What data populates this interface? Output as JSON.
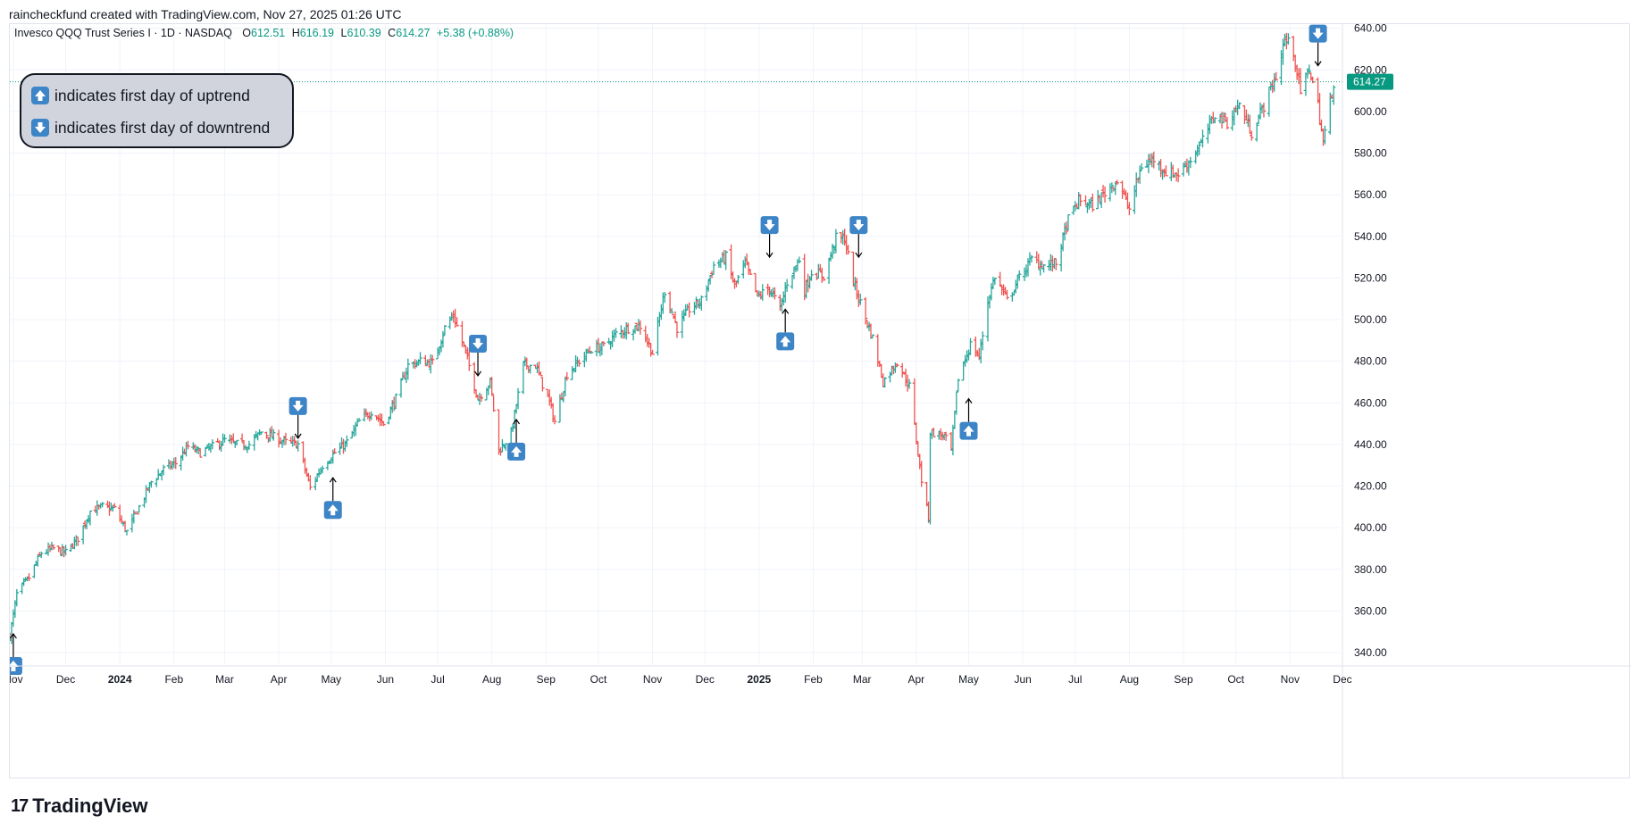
{
  "header": {
    "created_by": "raincheckfund created with TradingView.com, Nov 27, 2025 01:26 UTC"
  },
  "footer": {
    "brand_name": "TradingView",
    "logo_glyph": "17"
  },
  "colors": {
    "up": "#26a69a",
    "down": "#ef5350",
    "grid": "#f0f3fa",
    "axis_text": "#131722",
    "price_tag_bg": "#089981",
    "marker_bg": "#3d85c6"
  },
  "legend_box": {
    "line1": "indicates first day of uptrend",
    "line2": "indicates first day of downtrend"
  },
  "chart_data": {
    "type": "ohlc",
    "symbol_title": "Invesco QQQ Trust Series I · 1D · NASDAQ",
    "ohlc_labels": {
      "o": "O",
      "h": "H",
      "l": "L",
      "c": "C"
    },
    "last_ohlc": {
      "o": "612.51",
      "h": "616.19",
      "l": "610.39",
      "c": "614.27",
      "change": "+5.38 (+0.88%)"
    },
    "last_price_label": "614.27",
    "last_price": 614.27,
    "y_range": [
      334,
      642
    ],
    "y_ticks": [
      340,
      360,
      380,
      400,
      420,
      440,
      460,
      480,
      500,
      520,
      540,
      560,
      580,
      600,
      620,
      640
    ],
    "y_tick_labels": [
      "340.00",
      "360.00",
      "380.00",
      "400.00",
      "420.00",
      "440.00",
      "460.00",
      "480.00",
      "500.00",
      "520.00",
      "540.00",
      "560.00",
      "580.00",
      "600.00",
      "620.00",
      "640.00"
    ],
    "x_range": [
      "2023-10-30",
      "2025-11-30"
    ],
    "x_ticks": [
      {
        "date": "2023-11-01",
        "label": "Nov",
        "bold": false
      },
      {
        "date": "2023-12-01",
        "label": "Dec",
        "bold": false
      },
      {
        "date": "2024-01-01",
        "label": "2024",
        "bold": true
      },
      {
        "date": "2024-02-01",
        "label": "Feb",
        "bold": false
      },
      {
        "date": "2024-03-01",
        "label": "Mar",
        "bold": false
      },
      {
        "date": "2024-04-01",
        "label": "Apr",
        "bold": false
      },
      {
        "date": "2024-05-01",
        "label": "May",
        "bold": false
      },
      {
        "date": "2024-06-01",
        "label": "Jun",
        "bold": false
      },
      {
        "date": "2024-07-01",
        "label": "Jul",
        "bold": false
      },
      {
        "date": "2024-08-01",
        "label": "Aug",
        "bold": false
      },
      {
        "date": "2024-09-01",
        "label": "Sep",
        "bold": false
      },
      {
        "date": "2024-10-01",
        "label": "Oct",
        "bold": false
      },
      {
        "date": "2024-11-01",
        "label": "Nov",
        "bold": false
      },
      {
        "date": "2024-12-01",
        "label": "Dec",
        "bold": false
      },
      {
        "date": "2025-01-01",
        "label": "2025",
        "bold": true
      },
      {
        "date": "2025-02-01",
        "label": "Feb",
        "bold": false
      },
      {
        "date": "2025-03-01",
        "label": "Mar",
        "bold": false
      },
      {
        "date": "2025-04-01",
        "label": "Apr",
        "bold": false
      },
      {
        "date": "2025-05-01",
        "label": "May",
        "bold": false
      },
      {
        "date": "2025-06-01",
        "label": "Jun",
        "bold": false
      },
      {
        "date": "2025-07-01",
        "label": "Jul",
        "bold": false
      },
      {
        "date": "2025-08-01",
        "label": "Aug",
        "bold": false
      },
      {
        "date": "2025-09-01",
        "label": "Sep",
        "bold": false
      },
      {
        "date": "2025-10-01",
        "label": "Oct",
        "bold": false
      },
      {
        "date": "2025-11-01",
        "label": "Nov",
        "bold": false
      },
      {
        "date": "2025-12-01",
        "label": "Dec",
        "bold": false
      }
    ],
    "approx_closes": [
      [
        "2023-10-30",
        348
      ],
      [
        "2023-11-03",
        368
      ],
      [
        "2023-11-10",
        376
      ],
      [
        "2023-11-17",
        388
      ],
      [
        "2023-11-24",
        390
      ],
      [
        "2023-12-01",
        388
      ],
      [
        "2023-12-08",
        395
      ],
      [
        "2023-12-15",
        408
      ],
      [
        "2023-12-22",
        410
      ],
      [
        "2023-12-29",
        409
      ],
      [
        "2024-01-05",
        398
      ],
      [
        "2024-01-12",
        410
      ],
      [
        "2024-01-19",
        422
      ],
      [
        "2024-01-26",
        428
      ],
      [
        "2024-02-02",
        431
      ],
      [
        "2024-02-09",
        439
      ],
      [
        "2024-02-16",
        436
      ],
      [
        "2024-02-23",
        439
      ],
      [
        "2024-03-01",
        442
      ],
      [
        "2024-03-08",
        440
      ],
      [
        "2024-03-15",
        440
      ],
      [
        "2024-03-22",
        446
      ],
      [
        "2024-03-28",
        444
      ],
      [
        "2024-04-05",
        441
      ],
      [
        "2024-04-12",
        440
      ],
      [
        "2024-04-19",
        419
      ],
      [
        "2024-04-26",
        430
      ],
      [
        "2024-05-03",
        436
      ],
      [
        "2024-05-10",
        441
      ],
      [
        "2024-05-17",
        451
      ],
      [
        "2024-05-24",
        456
      ],
      [
        "2024-05-31",
        450
      ],
      [
        "2024-06-07",
        462
      ],
      [
        "2024-06-14",
        478
      ],
      [
        "2024-06-21",
        480
      ],
      [
        "2024-06-28",
        479
      ],
      [
        "2024-07-05",
        496
      ],
      [
        "2024-07-10",
        502
      ],
      [
        "2024-07-17",
        484
      ],
      [
        "2024-07-24",
        462
      ],
      [
        "2024-07-31",
        470
      ],
      [
        "2024-08-05",
        437
      ],
      [
        "2024-08-12",
        445
      ],
      [
        "2024-08-19",
        478
      ],
      [
        "2024-08-26",
        478
      ],
      [
        "2024-09-03",
        460
      ],
      [
        "2024-09-06",
        451
      ],
      [
        "2024-09-13",
        474
      ],
      [
        "2024-09-20",
        480
      ],
      [
        "2024-09-27",
        486
      ],
      [
        "2024-10-04",
        487
      ],
      [
        "2024-10-11",
        493
      ],
      [
        "2024-10-18",
        496
      ],
      [
        "2024-10-25",
        497
      ],
      [
        "2024-11-01",
        484
      ],
      [
        "2024-11-08",
        514
      ],
      [
        "2024-11-15",
        496
      ],
      [
        "2024-11-22",
        505
      ],
      [
        "2024-11-29",
        509
      ],
      [
        "2024-12-06",
        526
      ],
      [
        "2024-12-13",
        530
      ],
      [
        "2024-12-18",
        516
      ],
      [
        "2024-12-24",
        527
      ],
      [
        "2024-12-31",
        511
      ],
      [
        "2025-01-07",
        515
      ],
      [
        "2025-01-13",
        505
      ],
      [
        "2025-01-17",
        518
      ],
      [
        "2025-01-24",
        529
      ],
      [
        "2025-01-27",
        514
      ],
      [
        "2025-01-31",
        523
      ],
      [
        "2025-02-07",
        521
      ],
      [
        "2025-02-14",
        539
      ],
      [
        "2025-02-19",
        539
      ],
      [
        "2025-02-24",
        518
      ],
      [
        "2025-02-28",
        508
      ],
      [
        "2025-03-07",
        491
      ],
      [
        "2025-03-13",
        470
      ],
      [
        "2025-03-21",
        480
      ],
      [
        "2025-03-28",
        468
      ],
      [
        "2025-04-04",
        423
      ],
      [
        "2025-04-08",
        405
      ],
      [
        "2025-04-09",
        446
      ],
      [
        "2025-04-17",
        444
      ],
      [
        "2025-04-21",
        437
      ],
      [
        "2025-04-25",
        472
      ],
      [
        "2025-05-02",
        488
      ],
      [
        "2025-05-07",
        482
      ],
      [
        "2025-05-12",
        509
      ],
      [
        "2025-05-16",
        521
      ],
      [
        "2025-05-23",
        509
      ],
      [
        "2025-05-30",
        520
      ],
      [
        "2025-06-06",
        529
      ],
      [
        "2025-06-13",
        526
      ],
      [
        "2025-06-20",
        527
      ],
      [
        "2025-06-27",
        548
      ],
      [
        "2025-07-03",
        557
      ],
      [
        "2025-07-11",
        555
      ],
      [
        "2025-07-18",
        561
      ],
      [
        "2025-07-25",
        567
      ],
      [
        "2025-08-01",
        553
      ],
      [
        "2025-08-08",
        574
      ],
      [
        "2025-08-15",
        577
      ],
      [
        "2025-08-22",
        571
      ],
      [
        "2025-08-29",
        570
      ],
      [
        "2025-09-05",
        577
      ],
      [
        "2025-09-12",
        586
      ],
      [
        "2025-09-19",
        599
      ],
      [
        "2025-09-26",
        595
      ],
      [
        "2025-10-03",
        603
      ],
      [
        "2025-10-10",
        590
      ],
      [
        "2025-10-17",
        603
      ],
      [
        "2025-10-24",
        617
      ],
      [
        "2025-10-29",
        635
      ],
      [
        "2025-11-03",
        629
      ],
      [
        "2025-11-07",
        609
      ],
      [
        "2025-11-12",
        621
      ],
      [
        "2025-11-17",
        603
      ],
      [
        "2025-11-20",
        585
      ],
      [
        "2025-11-26",
        614
      ]
    ],
    "markers": [
      {
        "type": "up",
        "date": "2023-11-01",
        "price": 349
      },
      {
        "type": "down",
        "date": "2024-04-12",
        "price": 443
      },
      {
        "type": "up",
        "date": "2024-05-02",
        "price": 424
      },
      {
        "type": "down",
        "date": "2024-07-24",
        "price": 473
      },
      {
        "type": "up",
        "date": "2024-08-15",
        "price": 452
      },
      {
        "type": "down",
        "date": "2025-01-07",
        "price": 530
      },
      {
        "type": "up",
        "date": "2025-01-16",
        "price": 505
      },
      {
        "type": "down",
        "date": "2025-02-27",
        "price": 530
      },
      {
        "type": "up",
        "date": "2025-05-01",
        "price": 462
      },
      {
        "type": "down",
        "date": "2025-11-17",
        "price": 622
      }
    ]
  }
}
